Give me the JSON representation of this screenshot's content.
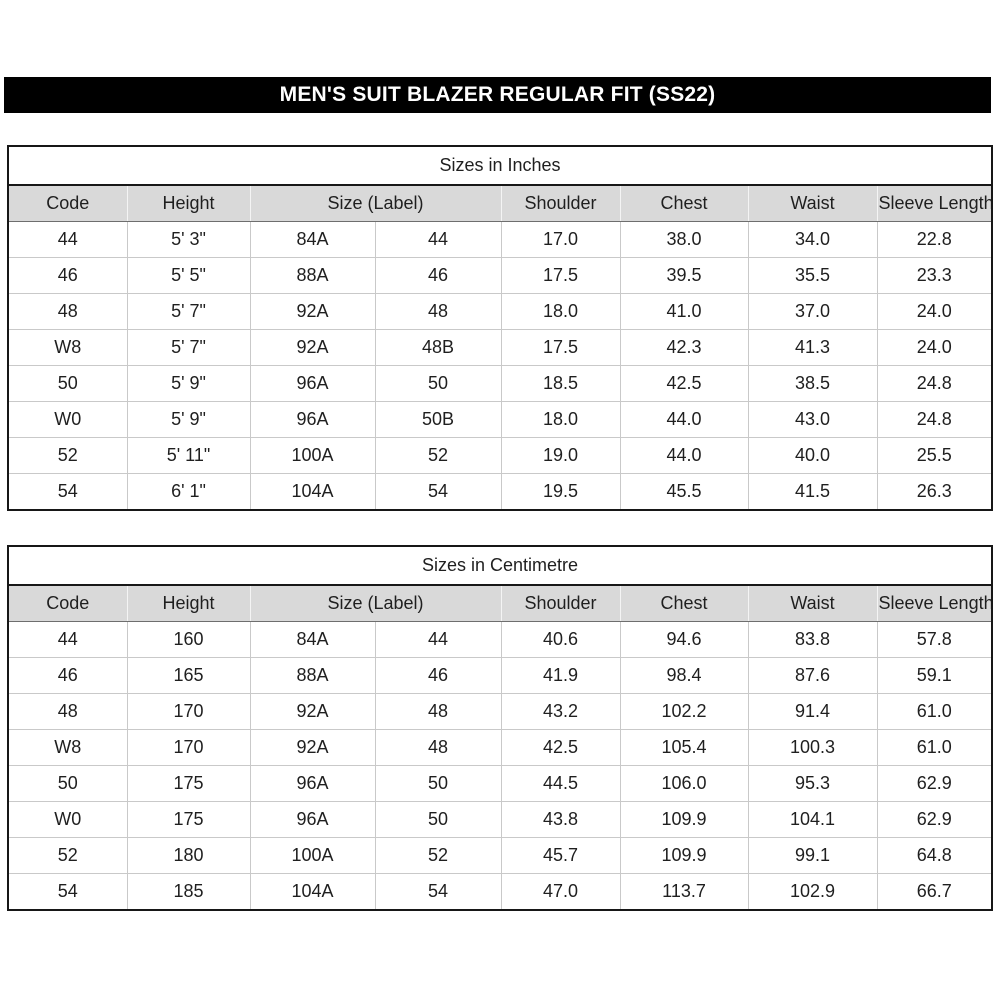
{
  "page_title": "MEN'S SUIT BLAZER REGULAR FIT (SS22)",
  "columns": [
    "Code",
    "Height",
    "Size (Label)",
    "Shoulder",
    "Chest",
    "Waist",
    "Sleeve Length"
  ],
  "tables": [
    {
      "title": "Sizes in Inches",
      "rows": [
        [
          "44",
          "5' 3\"",
          "84A",
          "44",
          "17.0",
          "38.0",
          "34.0",
          "22.8"
        ],
        [
          "46",
          "5' 5\"",
          "88A",
          "46",
          "17.5",
          "39.5",
          "35.5",
          "23.3"
        ],
        [
          "48",
          "5' 7\"",
          "92A",
          "48",
          "18.0",
          "41.0",
          "37.0",
          "24.0"
        ],
        [
          "W8",
          "5' 7\"",
          "92A",
          "48B",
          "17.5",
          "42.3",
          "41.3",
          "24.0"
        ],
        [
          "50",
          "5' 9\"",
          "96A",
          "50",
          "18.5",
          "42.5",
          "38.5",
          "24.8"
        ],
        [
          "W0",
          "5' 9\"",
          "96A",
          "50B",
          "18.0",
          "44.0",
          "43.0",
          "24.8"
        ],
        [
          "52",
          "5' 11\"",
          "100A",
          "52",
          "19.0",
          "44.0",
          "40.0",
          "25.5"
        ],
        [
          "54",
          "6' 1\"",
          "104A",
          "54",
          "19.5",
          "45.5",
          "41.5",
          "26.3"
        ]
      ]
    },
    {
      "title": "Sizes in Centimetre",
      "rows": [
        [
          "44",
          "160",
          "84A",
          "44",
          "40.6",
          "94.6",
          "83.8",
          "57.8"
        ],
        [
          "46",
          "165",
          "88A",
          "46",
          "41.9",
          "98.4",
          "87.6",
          "59.1"
        ],
        [
          "48",
          "170",
          "92A",
          "48",
          "43.2",
          "102.2",
          "91.4",
          "61.0"
        ],
        [
          "W8",
          "170",
          "92A",
          "48",
          "42.5",
          "105.4",
          "100.3",
          "61.0"
        ],
        [
          "50",
          "175",
          "96A",
          "50",
          "44.5",
          "106.0",
          "95.3",
          "62.9"
        ],
        [
          "W0",
          "175",
          "96A",
          "50",
          "43.8",
          "109.9",
          "104.1",
          "62.9"
        ],
        [
          "52",
          "180",
          "100A",
          "52",
          "45.7",
          "109.9",
          "99.1",
          "64.8"
        ],
        [
          "54",
          "185",
          "104A",
          "54",
          "47.0",
          "113.7",
          "102.9",
          "66.7"
        ]
      ]
    }
  ],
  "colors": {
    "title_bar_bg": "#000000",
    "title_bar_text": "#ffffff",
    "header_row_bg": "#d9d9d9",
    "gridline": "#c9c9c9",
    "outer_border": "#171717"
  }
}
